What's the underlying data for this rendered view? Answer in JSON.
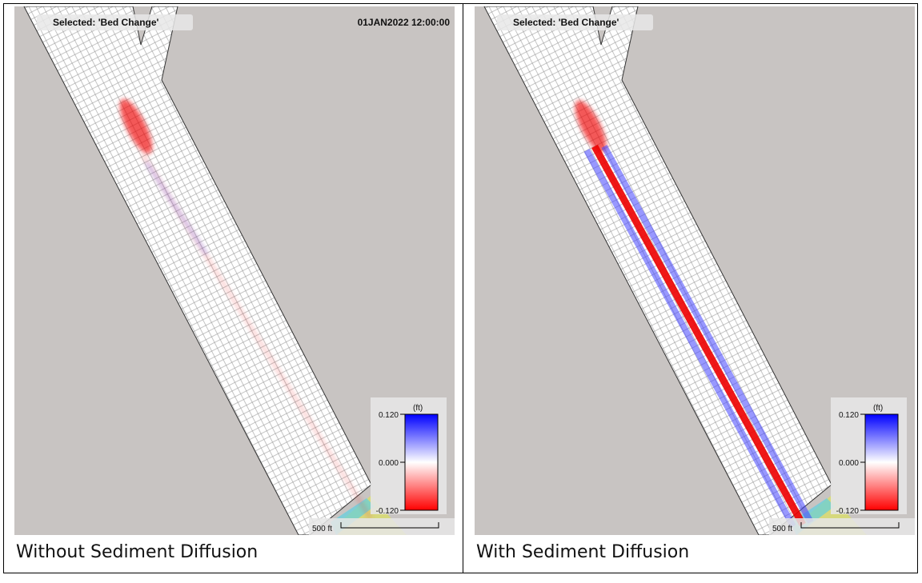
{
  "panels": [
    {
      "selected": "Selected: 'Bed Change'",
      "timestamp": "01JAN2022 12:00:00",
      "legend": {
        "unit": "(ft)",
        "ticks": [
          "0.120",
          "0.000",
          "-0.120"
        ]
      },
      "scale": "500 ft",
      "caption": "Without Sediment Diffusion"
    },
    {
      "selected": "Selected: 'Bed Change'",
      "legend": {
        "unit": "(ft)",
        "ticks": [
          "0.120",
          "0.000",
          "-0.120"
        ]
      },
      "scale": "500 ft",
      "caption": "With Sediment Diffusion"
    }
  ]
}
